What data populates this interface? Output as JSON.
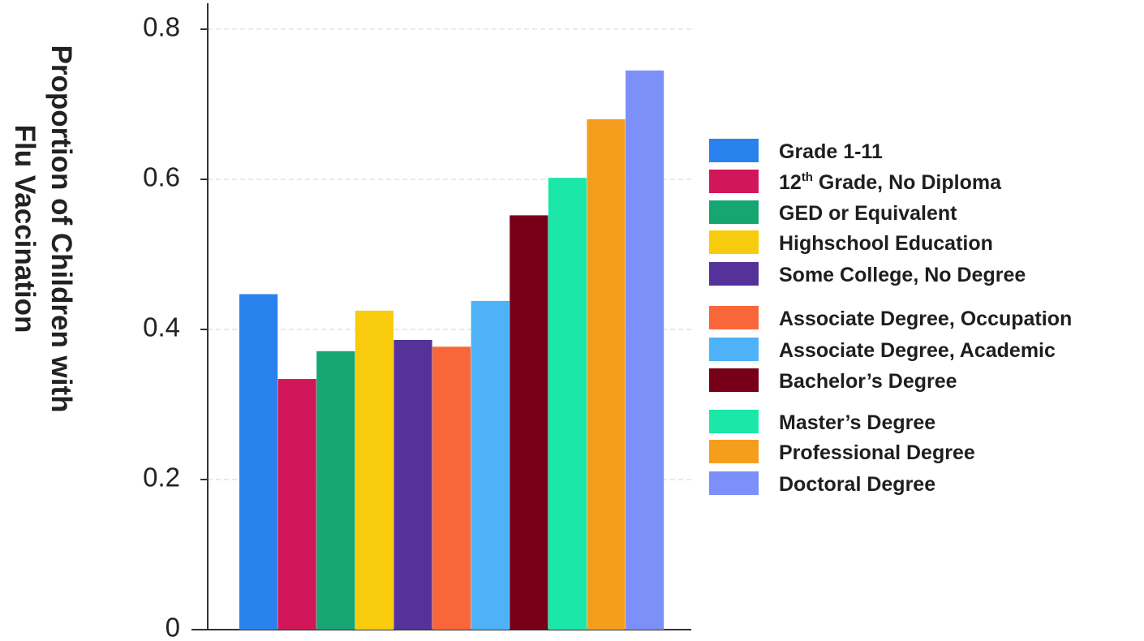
{
  "chart_data": {
    "type": "bar",
    "title": "",
    "xlabel": "",
    "ylabel_line1": "Proportion of Children with",
    "ylabel_line2": "Flu Vaccination",
    "ylim": [
      0,
      0.8
    ],
    "yticks": [
      {
        "value": 0,
        "label": "0"
      },
      {
        "value": 0.2,
        "label": "0.2"
      },
      {
        "value": 0.4,
        "label": "0.4"
      },
      {
        "value": 0.6,
        "label": "0.6"
      },
      {
        "value": 0.8,
        "label": "0.8"
      }
    ],
    "grid": true,
    "legend_position": "right",
    "categories": [
      "Grade 1-11",
      "12th Grade, No Diploma",
      "GED or Equivalent",
      "Highschool Education",
      "Some College, No Degree",
      "Associate Degree, Occupation",
      "Associate Degree, Academic",
      "Bachelor's Degree",
      "Master's Degree",
      "Professional Degree",
      "Doctoral Degree"
    ],
    "values": [
      0.447,
      0.334,
      0.371,
      0.425,
      0.386,
      0.377,
      0.438,
      0.552,
      0.602,
      0.68,
      0.745
    ],
    "colors": [
      "#2a82ee",
      "#d1175a",
      "#16a671",
      "#f8cc0c",
      "#55319a",
      "#f9663a",
      "#4eb2f8",
      "#770018",
      "#1be8a8",
      "#f59e1e",
      "#7d8ff8"
    ],
    "legend": [
      {
        "text": "Grade 1-11"
      },
      {
        "text": "12",
        "sup": "th",
        "rest": " Grade, No Diploma"
      },
      {
        "text": "GED or Equivalent"
      },
      {
        "text": "Highschool Education"
      },
      {
        "text": "Some College, No Degree"
      },
      {
        "text": "Associate Degree, Occupation"
      },
      {
        "text": "Associate Degree, Academic"
      },
      {
        "text": "Bachelor’s Degree"
      },
      {
        "text": "Master’s Degree"
      },
      {
        "text": "Professional Degree"
      },
      {
        "text": "Doctoral Degree"
      }
    ]
  }
}
